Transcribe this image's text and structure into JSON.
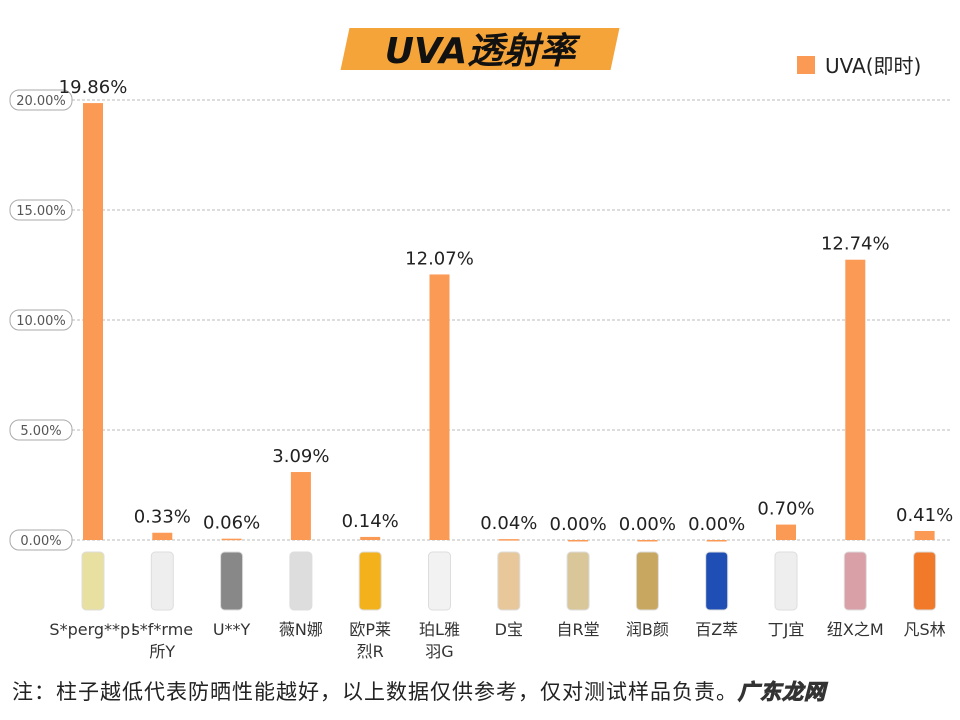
{
  "chart_data": {
    "type": "bar",
    "title": "UVA透射率",
    "categories": [
      "S*perg**p!",
      "s*f*rme所Y",
      "U**Y",
      "薇N娜",
      "欧P莱烈R",
      "珀L雅羽G",
      "D宝",
      "自R堂",
      "润B颜",
      "百Z萃",
      "丁J宜",
      "纽X之M",
      "凡S林"
    ],
    "category_lines": [
      [
        "S*perg**p!"
      ],
      [
        "s*f*rme",
        "所Y"
      ],
      [
        "U**Y"
      ],
      [
        "薇N娜"
      ],
      [
        "欧P莱",
        "烈R"
      ],
      [
        "珀L雅",
        "羽G"
      ],
      [
        "D宝"
      ],
      [
        "自R堂"
      ],
      [
        "润B颜"
      ],
      [
        "百Z萃"
      ],
      [
        "丁J宜"
      ],
      [
        "纽X之M"
      ],
      [
        "凡S林"
      ]
    ],
    "series": [
      {
        "name": "UVA(即时)",
        "values": [
          19.86,
          0.33,
          0.06,
          3.09,
          0.14,
          12.07,
          0.04,
          0.0,
          0.0,
          0.0,
          0.7,
          12.74,
          0.41
        ]
      }
    ],
    "data_labels": [
      "19.86%",
      "0.33%",
      "0.06%",
      "3.09%",
      "0.14%",
      "12.07%",
      "0.04%",
      "0.00%",
      "0.00%",
      "0.00%",
      "0.70%",
      "12.74%",
      "0.41%"
    ],
    "yticks": [
      0,
      5,
      10,
      15,
      20
    ],
    "ytick_labels": [
      "0.00%",
      "5.00%",
      "10.00%",
      "15.00%",
      "20.00%"
    ],
    "ylim": [
      0,
      20
    ],
    "grid": true,
    "legend_position": "top-right",
    "bar_color": "#fb9a55"
  },
  "note": "注：柱子越低代表防晒性能越好，以上数据仅供参考，仅对测试样品负责。",
  "watermark": "广东龙网",
  "colors": {
    "banner": "#f5a43a",
    "bar": "#fb9a55"
  }
}
